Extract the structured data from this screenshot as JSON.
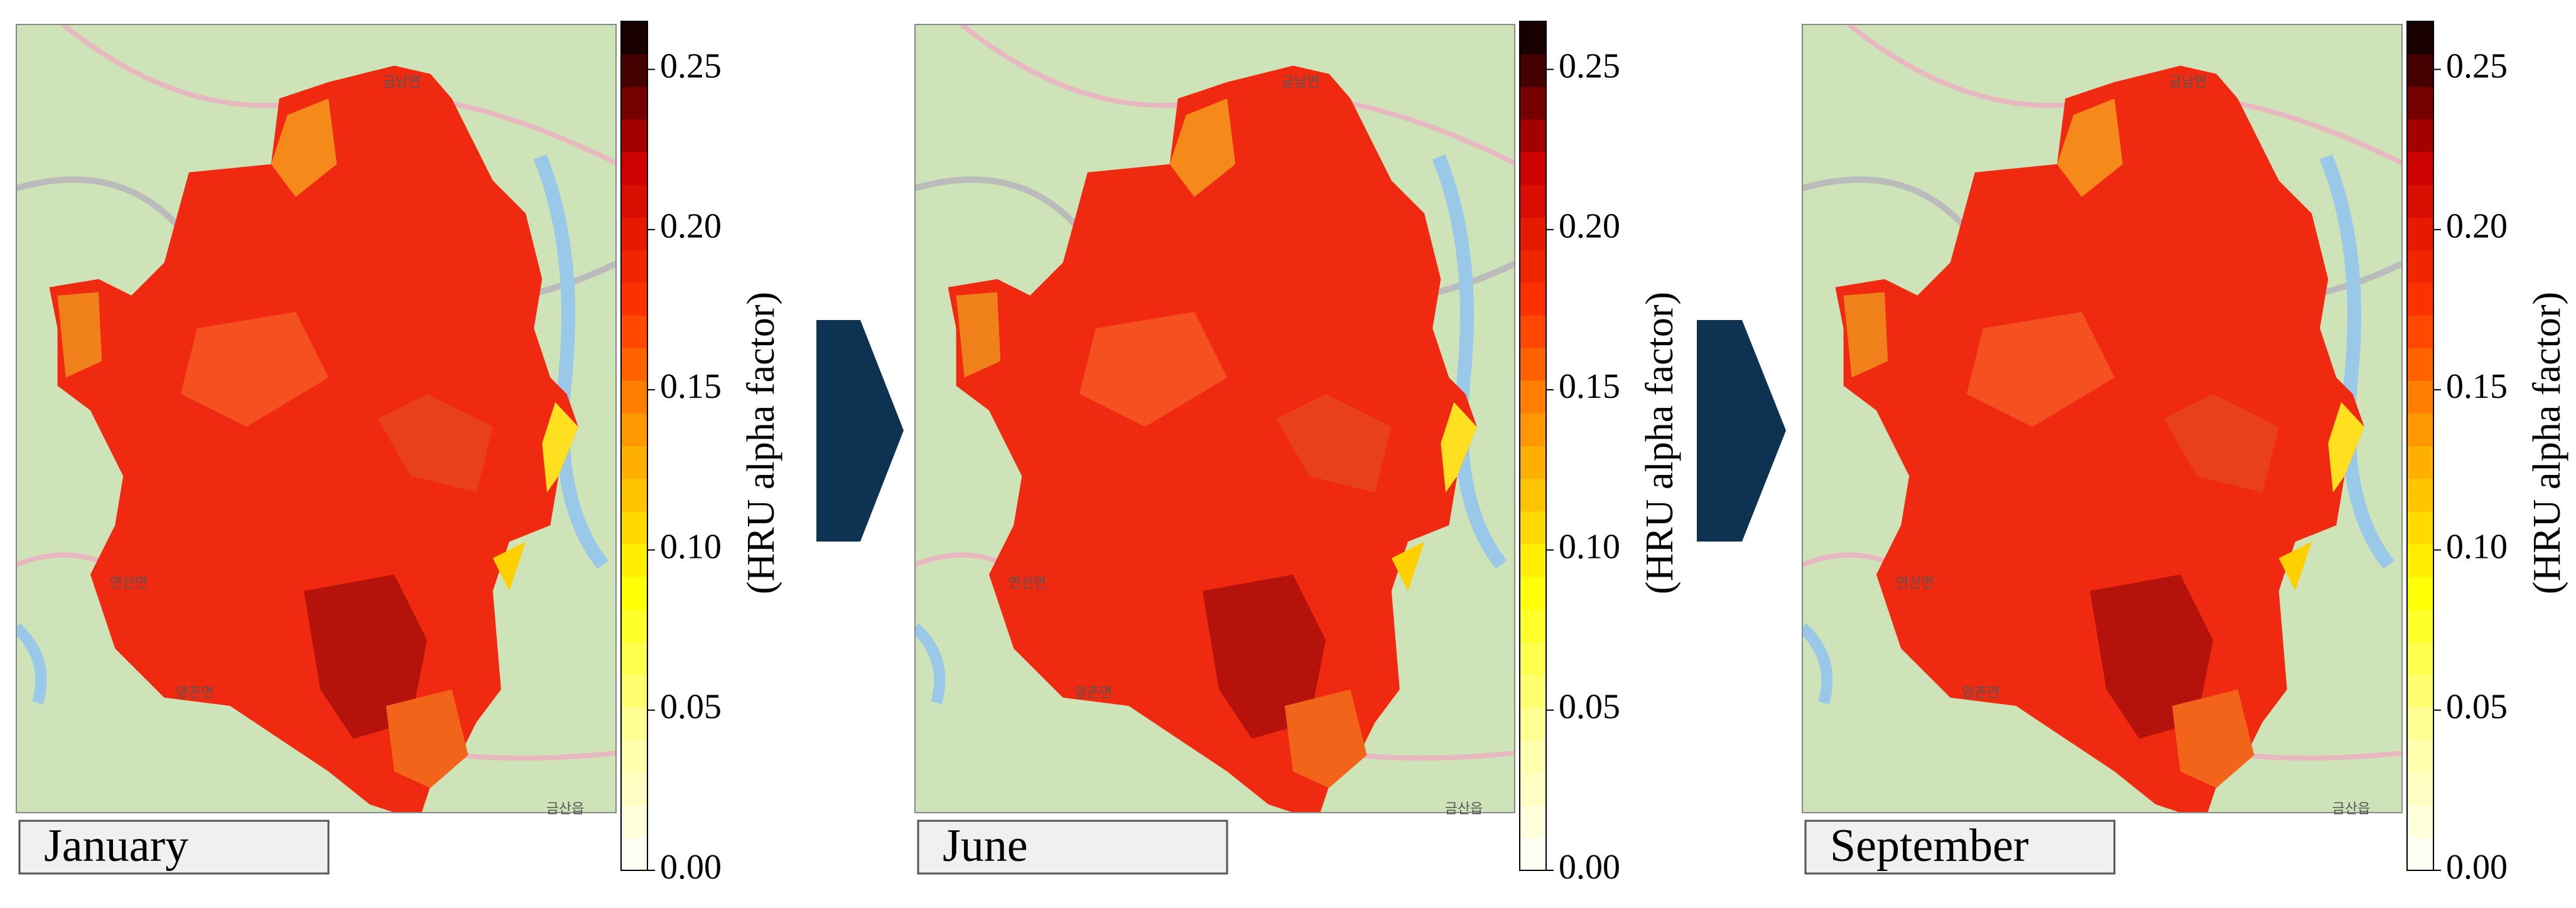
{
  "panels": [
    {
      "label": "January"
    },
    {
      "label": "June"
    },
    {
      "label": "September"
    }
  ],
  "colorbar": {
    "label": "(HRU alpha factor)",
    "lim": [
      0,
      0.265
    ],
    "ticks": [
      {
        "value": 0,
        "label": "0.00"
      },
      {
        "value": 0.05,
        "label": "0.05"
      },
      {
        "value": 0.1,
        "label": "0.10"
      },
      {
        "value": 0.15,
        "label": "0.15"
      },
      {
        "value": 0.2,
        "label": "0.20"
      },
      {
        "value": 0.25,
        "label": "0.25"
      }
    ],
    "colors": [
      "#ffffff",
      "#ffff99",
      "#ffff00",
      "#ffa500",
      "#ff3300",
      "#cc0000",
      "#000000"
    ]
  },
  "map_labels": [
    "금남면",
    "연산면",
    "양촌면",
    "금산읍"
  ]
}
